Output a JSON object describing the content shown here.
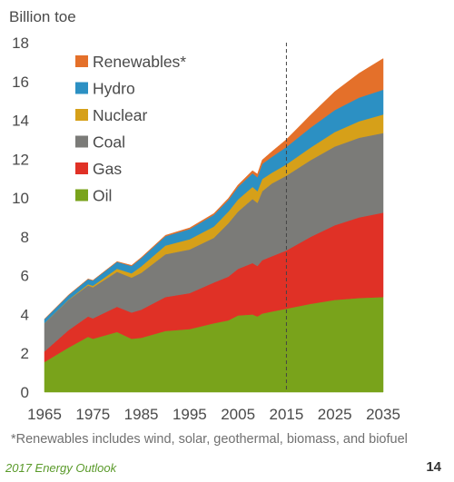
{
  "chart_data": {
    "type": "area",
    "stacked": true,
    "ylabel": "Billion toe",
    "ylim": [
      0,
      18
    ],
    "yticks": [
      0,
      2,
      4,
      6,
      8,
      10,
      12,
      14,
      16,
      18
    ],
    "xticks": [
      1965,
      1975,
      1985,
      1995,
      2005,
      2015,
      2025,
      2035
    ],
    "x": [
      1965,
      1970,
      1974,
      1975,
      1980,
      1983,
      1985,
      1990,
      1995,
      2000,
      2003,
      2005,
      2008,
      2009,
      2010,
      2012,
      2015,
      2020,
      2025,
      2030,
      2035
    ],
    "series": [
      {
        "name": "Oil",
        "color": "#79a31b",
        "values": [
          1.55,
          2.3,
          2.85,
          2.75,
          3.1,
          2.75,
          2.8,
          3.15,
          3.25,
          3.55,
          3.7,
          3.95,
          4.0,
          3.9,
          4.05,
          4.15,
          4.3,
          4.55,
          4.75,
          4.85,
          4.9
        ]
      },
      {
        "name": "Gas",
        "color": "#e03126",
        "values": [
          0.55,
          0.9,
          1.05,
          1.05,
          1.3,
          1.35,
          1.45,
          1.75,
          1.85,
          2.1,
          2.25,
          2.4,
          2.65,
          2.6,
          2.75,
          2.85,
          3.0,
          3.45,
          3.85,
          4.15,
          4.35
        ]
      },
      {
        "name": "Coal",
        "color": "#7b7b78",
        "values": [
          1.45,
          1.55,
          1.6,
          1.6,
          1.8,
          1.8,
          1.9,
          2.2,
          2.25,
          2.3,
          2.75,
          2.95,
          3.3,
          3.25,
          3.55,
          3.75,
          3.85,
          3.95,
          4.05,
          4.1,
          4.1
        ]
      },
      {
        "name": "Nuclear",
        "color": "#d6a019",
        "values": [
          0.01,
          0.02,
          0.06,
          0.08,
          0.16,
          0.22,
          0.33,
          0.45,
          0.53,
          0.58,
          0.6,
          0.62,
          0.62,
          0.6,
          0.63,
          0.55,
          0.58,
          0.65,
          0.75,
          0.85,
          0.95
        ]
      },
      {
        "name": "Hydro",
        "color": "#2c90c3",
        "values": [
          0.2,
          0.23,
          0.26,
          0.27,
          0.35,
          0.38,
          0.42,
          0.48,
          0.52,
          0.6,
          0.6,
          0.65,
          0.7,
          0.72,
          0.78,
          0.82,
          0.9,
          1.03,
          1.13,
          1.22,
          1.28
        ]
      },
      {
        "name": "Renewables*",
        "color": "#e4702a",
        "values": [
          0.01,
          0.01,
          0.01,
          0.01,
          0.02,
          0.03,
          0.04,
          0.05,
          0.06,
          0.07,
          0.08,
          0.1,
          0.14,
          0.16,
          0.2,
          0.27,
          0.38,
          0.65,
          0.95,
          1.25,
          1.6
        ]
      }
    ],
    "divider_x": 2015,
    "legend_placement": "top-left",
    "grid": false
  },
  "footnote": "*Renewables includes wind, solar, geothermal, biomass, and biofuel",
  "footer": {
    "source": "2017 Energy Outlook",
    "page_number": "14"
  }
}
